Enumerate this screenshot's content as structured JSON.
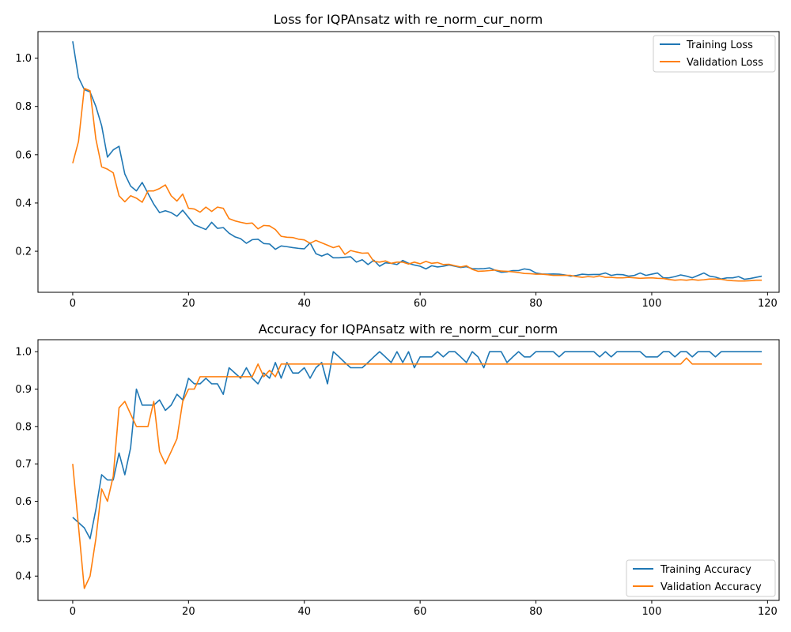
{
  "chart_data": [
    {
      "type": "line",
      "title": "Loss for IQPAnsatz with re_norm_cur_norm",
      "xlabel": "",
      "ylabel": "",
      "xlim": [
        -6,
        122
      ],
      "ylim": [
        0.03,
        1.11
      ],
      "xticks": [
        0,
        20,
        40,
        60,
        80,
        100,
        120
      ],
      "yticks": [
        0.2,
        0.4,
        0.6,
        0.8,
        1.0
      ],
      "ytick_labels": [
        "0.2",
        "0.4",
        "0.6",
        "0.8",
        "1.0"
      ],
      "grid": false,
      "legend_position": "top-right",
      "series": [
        {
          "name": "Training Loss",
          "color": "#1f77b4",
          "values": [
            1.07,
            0.92,
            0.87,
            0.86,
            0.8,
            0.72,
            0.59,
            0.62,
            0.635,
            0.52,
            0.47,
            0.45,
            0.485,
            0.44,
            0.395,
            0.36,
            0.368,
            0.36,
            0.345,
            0.37,
            0.34,
            0.31,
            0.3,
            0.29,
            0.32,
            0.295,
            0.298,
            0.275,
            0.26,
            0.252,
            0.233,
            0.248,
            0.25,
            0.232,
            0.23,
            0.208,
            0.222,
            0.219,
            0.215,
            0.212,
            0.21,
            0.235,
            0.19,
            0.18,
            0.19,
            0.173,
            0.173,
            0.175,
            0.177,
            0.155,
            0.165,
            0.145,
            0.163,
            0.138,
            0.152,
            0.15,
            0.145,
            0.162,
            0.15,
            0.143,
            0.138,
            0.127,
            0.14,
            0.135,
            0.138,
            0.143,
            0.138,
            0.133,
            0.136,
            0.128,
            0.127,
            0.128,
            0.131,
            0.121,
            0.113,
            0.115,
            0.12,
            0.12,
            0.127,
            0.123,
            0.11,
            0.106,
            0.105,
            0.106,
            0.105,
            0.102,
            0.097,
            0.1,
            0.105,
            0.103,
            0.104,
            0.104,
            0.11,
            0.1,
            0.104,
            0.103,
            0.097,
            0.1,
            0.11,
            0.1,
            0.105,
            0.11,
            0.09,
            0.09,
            0.095,
            0.102,
            0.097,
            0.09,
            0.1,
            0.11,
            0.097,
            0.093,
            0.085,
            0.09,
            0.09,
            0.095,
            0.084,
            0.087,
            0.092,
            0.097
          ]
        },
        {
          "name": "Validation Loss",
          "color": "#ff7f0e",
          "values": [
            0.565,
            0.655,
            0.875,
            0.865,
            0.665,
            0.55,
            0.54,
            0.525,
            0.43,
            0.405,
            0.43,
            0.42,
            0.403,
            0.45,
            0.45,
            0.46,
            0.475,
            0.43,
            0.408,
            0.437,
            0.378,
            0.375,
            0.362,
            0.383,
            0.365,
            0.383,
            0.378,
            0.335,
            0.326,
            0.32,
            0.315,
            0.317,
            0.293,
            0.307,
            0.305,
            0.29,
            0.262,
            0.258,
            0.257,
            0.25,
            0.247,
            0.233,
            0.245,
            0.235,
            0.225,
            0.215,
            0.222,
            0.187,
            0.203,
            0.197,
            0.192,
            0.193,
            0.158,
            0.155,
            0.16,
            0.15,
            0.155,
            0.155,
            0.147,
            0.155,
            0.148,
            0.158,
            0.15,
            0.153,
            0.145,
            0.146,
            0.14,
            0.135,
            0.14,
            0.125,
            0.117,
            0.118,
            0.12,
            0.122,
            0.118,
            0.117,
            0.115,
            0.112,
            0.108,
            0.107,
            0.105,
            0.105,
            0.103,
            0.1,
            0.1,
            0.1,
            0.1,
            0.095,
            0.092,
            0.095,
            0.093,
            0.098,
            0.092,
            0.092,
            0.09,
            0.09,
            0.092,
            0.09,
            0.088,
            0.089,
            0.09,
            0.088,
            0.087,
            0.083,
            0.08,
            0.082,
            0.08,
            0.083,
            0.08,
            0.082,
            0.085,
            0.085,
            0.084,
            0.08,
            0.078,
            0.077,
            0.077,
            0.078,
            0.08,
            0.08
          ]
        }
      ]
    },
    {
      "type": "line",
      "title": "Accuracy for IQPAnsatz with re_norm_cur_norm",
      "xlabel": "",
      "ylabel": "",
      "xlim": [
        -6,
        122
      ],
      "ylim": [
        0.335,
        1.032
      ],
      "xticks": [
        0,
        20,
        40,
        60,
        80,
        100,
        120
      ],
      "yticks": [
        0.4,
        0.5,
        0.6,
        0.7,
        0.8,
        0.9,
        1.0
      ],
      "ytick_labels": [
        "0.4",
        "0.5",
        "0.6",
        "0.7",
        "0.8",
        "0.9",
        "1.0"
      ],
      "grid": false,
      "legend_position": "bottom-right",
      "series": [
        {
          "name": "Training Accuracy",
          "color": "#1f77b4",
          "values": [
            0.557,
            0.543,
            0.529,
            0.5,
            0.578,
            0.671,
            0.657,
            0.657,
            0.729,
            0.671,
            0.743,
            0.9,
            0.857,
            0.857,
            0.857,
            0.871,
            0.843,
            0.857,
            0.886,
            0.871,
            0.929,
            0.914,
            0.914,
            0.929,
            0.914,
            0.914,
            0.886,
            0.957,
            0.943,
            0.929,
            0.957,
            0.929,
            0.914,
            0.943,
            0.929,
            0.971,
            0.929,
            0.971,
            0.943,
            0.943,
            0.957,
            0.929,
            0.957,
            0.971,
            0.914,
            1.0,
            0.986,
            0.971,
            0.957,
            0.957,
            0.957,
            0.971,
            0.986,
            1.0,
            0.986,
            0.971,
            1.0,
            0.971,
            1.0,
            0.957,
            0.986,
            0.986,
            0.986,
            1.0,
            0.986,
            1.0,
            1.0,
            0.986,
            0.971,
            1.0,
            0.986,
            0.957,
            1.0,
            1.0,
            1.0,
            0.971,
            0.986,
            1.0,
            0.986,
            0.986,
            1.0,
            1.0,
            1.0,
            1.0,
            0.986,
            1.0,
            1.0,
            1.0,
            1.0,
            1.0,
            1.0,
            0.986,
            1.0,
            0.986,
            1.0,
            1.0,
            1.0,
            1.0,
            1.0,
            0.986,
            0.986,
            0.986,
            1.0,
            1.0,
            0.986,
            1.0,
            1.0,
            0.986,
            1.0,
            1.0,
            1.0,
            0.986,
            1.0,
            1.0,
            1.0,
            1.0,
            1.0,
            1.0,
            1.0,
            1.0
          ]
        },
        {
          "name": "Validation Accuracy",
          "color": "#ff7f0e",
          "values": [
            0.7,
            0.533,
            0.367,
            0.4,
            0.5,
            0.633,
            0.6,
            0.667,
            0.85,
            0.867,
            0.833,
            0.8,
            0.8,
            0.8,
            0.867,
            0.733,
            0.7,
            0.733,
            0.767,
            0.867,
            0.9,
            0.9,
            0.933,
            0.933,
            0.933,
            0.933,
            0.933,
            0.933,
            0.933,
            0.933,
            0.933,
            0.933,
            0.967,
            0.933,
            0.95,
            0.933,
            0.967,
            0.967,
            0.967,
            0.967,
            0.967,
            0.967,
            0.967,
            0.967,
            0.967,
            0.967,
            0.967,
            0.967,
            0.967,
            0.967,
            0.967,
            0.967,
            0.967,
            0.967,
            0.967,
            0.967,
            0.967,
            0.967,
            0.967,
            0.967,
            0.967,
            0.967,
            0.967,
            0.967,
            0.967,
            0.967,
            0.967,
            0.967,
            0.967,
            0.967,
            0.967,
            0.967,
            0.967,
            0.967,
            0.967,
            0.967,
            0.967,
            0.967,
            0.967,
            0.967,
            0.967,
            0.967,
            0.967,
            0.967,
            0.967,
            0.967,
            0.967,
            0.967,
            0.967,
            0.967,
            0.967,
            0.967,
            0.967,
            0.967,
            0.967,
            0.967,
            0.967,
            0.967,
            0.967,
            0.967,
            0.967,
            0.967,
            0.967,
            0.967,
            0.967,
            0.967,
            0.983,
            0.967,
            0.967,
            0.967,
            0.967,
            0.967,
            0.967,
            0.967,
            0.967,
            0.967,
            0.967,
            0.967,
            0.967,
            0.967
          ]
        }
      ]
    }
  ]
}
